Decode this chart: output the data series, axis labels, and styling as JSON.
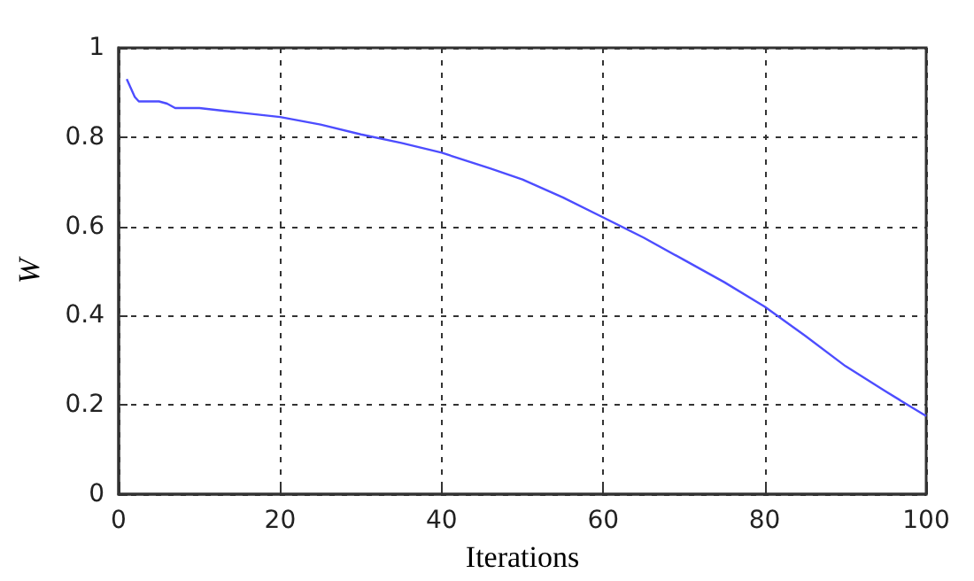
{
  "chart_data": {
    "type": "line",
    "xlabel": "Iterations",
    "ylabel": "W",
    "x": [
      1,
      2,
      2.5,
      3,
      5,
      6,
      7,
      10,
      15,
      20,
      25,
      30,
      35,
      40,
      46,
      50,
      55,
      60,
      65,
      70,
      75,
      80,
      85,
      90,
      95,
      100
    ],
    "series": [
      {
        "color": "#4d4dff",
        "values": [
          0.93,
          0.89,
          0.88,
          0.88,
          0.88,
          0.875,
          0.865,
          0.865,
          0.855,
          0.845,
          0.828,
          0.806,
          0.787,
          0.765,
          0.73,
          0.705,
          0.665,
          0.62,
          0.575,
          0.525,
          0.475,
          0.42,
          0.355,
          0.287,
          0.23,
          0.175
        ]
      }
    ],
    "xlim": [
      0,
      100
    ],
    "xticks": [
      0,
      20,
      40,
      60,
      80,
      100
    ],
    "ylim": [
      0,
      1
    ],
    "yticks": [
      0,
      0.2,
      0.4,
      0.6,
      0.8,
      1
    ],
    "grid": true,
    "marker": "none",
    "line_style": "solid"
  }
}
